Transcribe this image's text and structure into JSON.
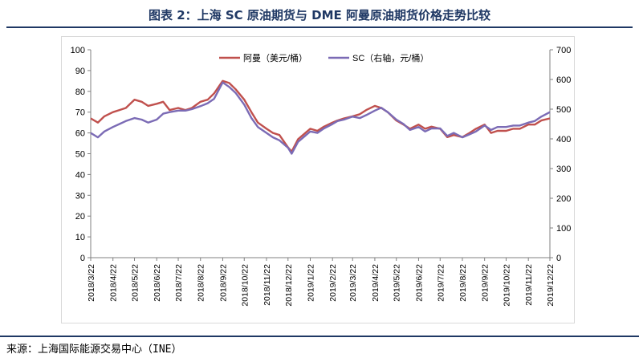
{
  "figure": {
    "title": "图表 2：上海 SC 原油期货与 DME 阿曼原油期货价格走势比较",
    "source": "来源：上海国际能源交易中心（INE）"
  },
  "colors": {
    "title": "#1f3864",
    "series_oman": "#c0504d",
    "series_sc": "#7b6bb5",
    "axis": "#808080"
  },
  "chart_data": {
    "type": "line",
    "title": "",
    "x_tick_labels": [
      "2018/3/22",
      "2018/4/22",
      "2018/5/22",
      "2018/6/22",
      "2018/7/22",
      "2018/8/22",
      "2018/9/22",
      "2018/10/22",
      "2018/11/22",
      "2018/12/22",
      "2019/1/22",
      "2019/2/22",
      "2019/3/22",
      "2019/4/22",
      "2019/5/22",
      "2019/6/22",
      "2019/7/22",
      "2019/8/22",
      "2019/9/22",
      "2019/10/22",
      "2019/11/22",
      "2019/12/22"
    ],
    "y_left": {
      "min": 0,
      "max": 100,
      "ticks": [
        "0",
        "10",
        "20",
        "30",
        "40",
        "50",
        "60",
        "70",
        "80",
        "90",
        "100"
      ]
    },
    "y_right": {
      "min": 0,
      "max": 700,
      "ticks": [
        "0",
        "100",
        "200",
        "300",
        "400",
        "500",
        "600",
        "700"
      ]
    },
    "legend": {
      "placement": "top-center"
    },
    "grid": false,
    "series": [
      {
        "name": "阿曼（美元/桶）",
        "axis": "left",
        "x": [
          "2018/3/22",
          "2018/4/1",
          "2018/4/10",
          "2018/4/22",
          "2018/5/1",
          "2018/5/10",
          "2018/5/22",
          "2018/6/1",
          "2018/6/10",
          "2018/6/22",
          "2018/7/1",
          "2018/7/10",
          "2018/7/22",
          "2018/8/1",
          "2018/8/10",
          "2018/8/22",
          "2018/9/1",
          "2018/9/10",
          "2018/9/22",
          "2018/10/1",
          "2018/10/10",
          "2018/10/22",
          "2018/11/1",
          "2018/11/10",
          "2018/11/22",
          "2018/12/1",
          "2018/12/10",
          "2018/12/22",
          "2018/12/27",
          "2019/1/5",
          "2019/1/22",
          "2019/2/1",
          "2019/2/10",
          "2019/2/22",
          "2019/3/1",
          "2019/3/10",
          "2019/3/22",
          "2019/4/1",
          "2019/4/10",
          "2019/4/22",
          "2019/5/1",
          "2019/5/10",
          "2019/5/22",
          "2019/6/1",
          "2019/6/10",
          "2019/6/22",
          "2019/7/1",
          "2019/7/10",
          "2019/7/22",
          "2019/8/1",
          "2019/8/10",
          "2019/8/22",
          "2019/9/1",
          "2019/9/10",
          "2019/9/22",
          "2019/10/1",
          "2019/10/10",
          "2019/10/22",
          "2019/11/1",
          "2019/11/10",
          "2019/11/22",
          "2019/12/1",
          "2019/12/10",
          "2019/12/22"
        ],
        "values": [
          67,
          65,
          68,
          70,
          71,
          72,
          76,
          75,
          73,
          74,
          75,
          71,
          72,
          71,
          72,
          75,
          76,
          79,
          85,
          84,
          81,
          76,
          70,
          65,
          62,
          60,
          59,
          53,
          51,
          57,
          62,
          61,
          63,
          65,
          66,
          67,
          68,
          69,
          71,
          73,
          72,
          70,
          66,
          64,
          62,
          64,
          62,
          63,
          62,
          58,
          59,
          58,
          60,
          62,
          64,
          60,
          61,
          61,
          62,
          62,
          64,
          64,
          66,
          67
        ]
      },
      {
        "name": "SC（右轴，元/桶）",
        "axis": "right",
        "x": [
          "2018/3/22",
          "2018/4/1",
          "2018/4/10",
          "2018/4/22",
          "2018/5/1",
          "2018/5/10",
          "2018/5/22",
          "2018/6/1",
          "2018/6/10",
          "2018/6/22",
          "2018/7/1",
          "2018/7/10",
          "2018/7/22",
          "2018/8/1",
          "2018/8/10",
          "2018/8/22",
          "2018/9/1",
          "2018/9/10",
          "2018/9/22",
          "2018/10/1",
          "2018/10/10",
          "2018/10/22",
          "2018/11/1",
          "2018/11/10",
          "2018/11/22",
          "2018/12/1",
          "2018/12/10",
          "2018/12/22",
          "2018/12/27",
          "2019/1/5",
          "2019/1/22",
          "2019/2/1",
          "2019/2/10",
          "2019/2/22",
          "2019/3/1",
          "2019/3/10",
          "2019/3/22",
          "2019/4/1",
          "2019/4/10",
          "2019/4/22",
          "2019/5/1",
          "2019/5/10",
          "2019/5/22",
          "2019/6/1",
          "2019/6/10",
          "2019/6/22",
          "2019/7/1",
          "2019/7/10",
          "2019/7/22",
          "2019/8/1",
          "2019/8/10",
          "2019/8/22",
          "2019/9/1",
          "2019/9/10",
          "2019/9/22",
          "2019/10/1",
          "2019/10/10",
          "2019/10/22",
          "2019/11/1",
          "2019/11/10",
          "2019/11/22",
          "2019/12/1",
          "2019/12/10",
          "2019/12/22"
        ],
        "values": [
          420,
          405,
          425,
          440,
          450,
          460,
          470,
          465,
          455,
          465,
          485,
          490,
          495,
          495,
          500,
          510,
          520,
          535,
          590,
          575,
          555,
          515,
          470,
          440,
          420,
          405,
          395,
          370,
          350,
          390,
          425,
          420,
          435,
          450,
          460,
          465,
          475,
          470,
          480,
          495,
          505,
          490,
          465,
          450,
          430,
          440,
          425,
          435,
          435,
          410,
          420,
          405,
          415,
          425,
          445,
          430,
          440,
          440,
          445,
          445,
          455,
          460,
          475,
          490
        ]
      }
    ]
  }
}
